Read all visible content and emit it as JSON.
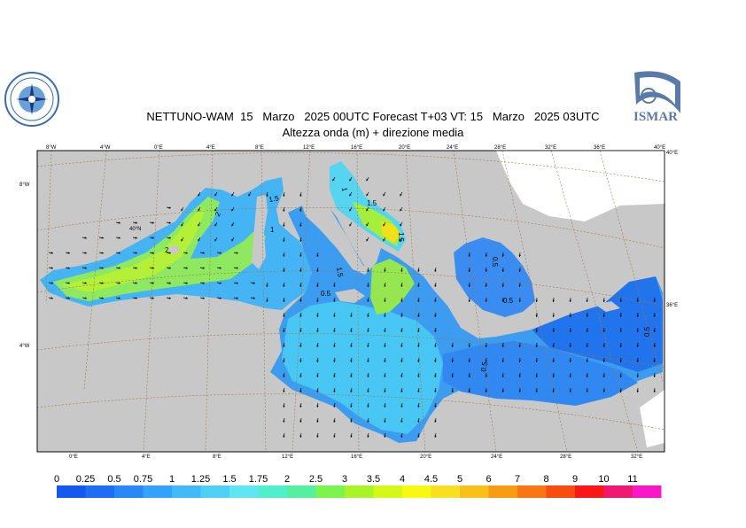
{
  "header": {
    "title_line1": "NETTUNO-WAM  15   Marzo   2025 00UTC Forecast T+03 VT: 15   Marzo   2025 03UTC",
    "title_line2": "Altezza onda (m) + direzione media"
  },
  "logos": {
    "left_name": "meteo-service-emblem",
    "right_text": "ISMAR"
  },
  "axes": {
    "top_lon_labels": [
      "8°W",
      "4°W",
      "0°E",
      "4°E",
      "8°E",
      "12°E",
      "16°E",
      "20°E",
      "24°E",
      "28°E",
      "32°E",
      "36°E",
      "40°E"
    ],
    "bottom_lon_labels": [
      "0°E",
      "4°E",
      "8°E",
      "12°E",
      "16°E",
      "20°E",
      "24°E",
      "28°E",
      "32°E"
    ],
    "left_lat_labels": [
      "8°W",
      "40°N",
      "4°W"
    ],
    "right_lat_labels": [
      "40°E",
      "36°E"
    ]
  },
  "contour_labels": [
    "2",
    "2",
    "1.5",
    "1.5",
    "1",
    "0.5",
    "1",
    "1.5",
    "0.5",
    "1.5",
    "0.5",
    "0.5",
    "0.5"
  ],
  "colorbar": {
    "labels": [
      "0",
      "0.25",
      "0.5",
      "0.75",
      "1",
      "1.25",
      "1.5",
      "1.75",
      "2",
      "2.5",
      "3",
      "3.5",
      "4",
      "4.5",
      "5",
      "6",
      "7",
      "8",
      "9",
      "10",
      "11"
    ],
    "colors": [
      "#1458f0",
      "#1e6ef4",
      "#2888f8",
      "#32a2fa",
      "#40baf8",
      "#4ed0f6",
      "#5ee6f2",
      "#50f0cc",
      "#54f0a0",
      "#7cf450",
      "#a8f428",
      "#d6f818",
      "#f8f810",
      "#f8e020",
      "#f8c018",
      "#f89c14",
      "#f87614",
      "#f84c10",
      "#f81818",
      "#f01870",
      "#f818c8"
    ]
  },
  "colors": {
    "land": "#c8c8c8",
    "sea_low": "#3a8cf0",
    "sea_mid": "#48c8f4",
    "sea_high": "#9cec50",
    "peak": "#f4e010",
    "grid": "#a0784a"
  }
}
